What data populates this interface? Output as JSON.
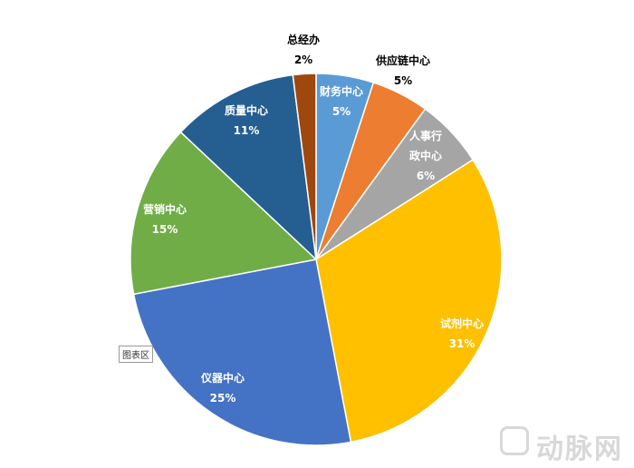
{
  "chart_data": {
    "type": "pie",
    "categories": [
      "财务中心",
      "供应链中心",
      "人事行政中心",
      "试剂中心",
      "仪器中心",
      "营销中心",
      "质量中心",
      "总经办"
    ],
    "values": [
      5,
      5,
      6,
      31,
      25,
      15,
      11,
      2
    ],
    "value_labels": [
      "5%",
      "5%",
      "6%",
      "31%",
      "25%",
      "15%",
      "11%",
      "2%"
    ],
    "colors": [
      "#5b9bd5",
      "#ed7d31",
      "#a5a5a5",
      "#ffc000",
      "#4472c4",
      "#70ad47",
      "#255e91",
      "#9e480e"
    ],
    "tooltip": "图表区",
    "watermark": "动脉网"
  }
}
